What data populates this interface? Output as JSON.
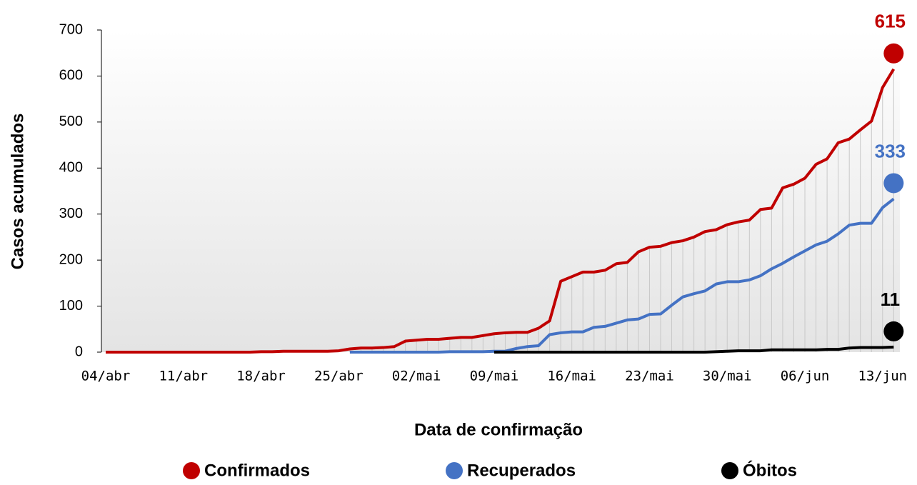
{
  "chart_data": {
    "type": "line",
    "xlabel": "Data de confirmação",
    "ylabel": "Casos acumulados",
    "categories": [
      "04/abr",
      null,
      null,
      null,
      null,
      null,
      null,
      "11/abr",
      null,
      null,
      null,
      null,
      null,
      null,
      "18/abr",
      null,
      null,
      null,
      null,
      null,
      null,
      "25/abr",
      null,
      null,
      null,
      null,
      null,
      null,
      "02/mai",
      null,
      null,
      null,
      null,
      null,
      null,
      "09/mai",
      null,
      null,
      null,
      null,
      null,
      null,
      "16/mai",
      null,
      null,
      null,
      null,
      null,
      null,
      "23/mai",
      null,
      null,
      null,
      null,
      null,
      null,
      "30/mai",
      null,
      null,
      null,
      null,
      null,
      null,
      "06/jun",
      null,
      null,
      null,
      null,
      null,
      null,
      "13/jun",
      null
    ],
    "series": [
      {
        "name": "Confirmados",
        "color": "#c00000",
        "values": [
          0,
          0,
          0,
          0,
          0,
          0,
          0,
          0,
          0,
          0,
          0,
          0,
          0,
          0,
          1,
          1,
          2,
          2,
          2,
          2,
          2,
          3,
          7,
          9,
          9,
          10,
          12,
          24,
          26,
          28,
          28,
          30,
          32,
          32,
          36,
          40,
          42,
          43,
          43,
          52,
          68,
          154,
          164,
          174,
          174,
          178,
          192,
          195,
          218,
          228,
          230,
          238,
          242,
          250,
          262,
          266,
          277,
          283,
          287,
          310,
          313,
          357,
          365,
          378,
          408,
          420,
          455,
          463,
          483,
          502,
          575,
          615
        ]
      },
      {
        "name": "Recuperados",
        "color": "#4472c4",
        "values": [
          null,
          null,
          null,
          null,
          null,
          null,
          null,
          null,
          null,
          null,
          null,
          null,
          null,
          null,
          null,
          null,
          null,
          null,
          null,
          null,
          null,
          null,
          0,
          0,
          0,
          0,
          0,
          0,
          0,
          0,
          0,
          1,
          1,
          1,
          1,
          2,
          2,
          8,
          12,
          14,
          38,
          42,
          44,
          44,
          54,
          56,
          63,
          70,
          72,
          82,
          83,
          102,
          120,
          127,
          133,
          148,
          153,
          153,
          157,
          166,
          181,
          193,
          207,
          220,
          233,
          241,
          257,
          276,
          280,
          280,
          314,
          333
        ]
      },
      {
        "name": "Óbitos",
        "color": "#000000",
        "values": [
          null,
          null,
          null,
          null,
          null,
          null,
          null,
          null,
          null,
          null,
          null,
          null,
          null,
          null,
          null,
          null,
          null,
          null,
          null,
          null,
          null,
          null,
          null,
          null,
          null,
          null,
          null,
          null,
          null,
          null,
          null,
          null,
          null,
          null,
          null,
          0,
          0,
          0,
          0,
          0,
          0,
          0,
          0,
          0,
          0,
          0,
          0,
          0,
          0,
          0,
          0,
          0,
          0,
          0,
          0,
          1,
          2,
          3,
          3,
          3,
          5,
          5,
          5,
          5,
          5,
          6,
          6,
          9,
          10,
          10,
          10,
          11
        ]
      }
    ],
    "ylim": [
      0,
      700
    ],
    "yticks": [
      0,
      100,
      200,
      300,
      400,
      500,
      600,
      700
    ]
  }
}
